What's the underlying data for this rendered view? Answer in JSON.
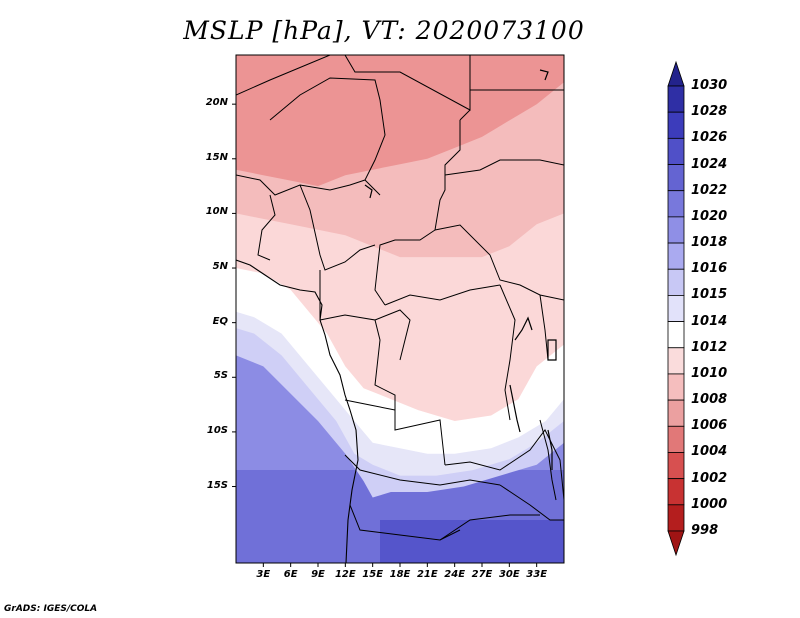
{
  "title": "MSLP [hPa], VT: 2020073100",
  "footer": "GrADS: IGES/COLA",
  "map": {
    "lon_range": [
      0,
      36
    ],
    "lat_range": [
      -22,
      24.5
    ],
    "lat_ticks": [
      {
        "value": 20,
        "label": "20N"
      },
      {
        "value": 15,
        "label": "15N"
      },
      {
        "value": 10,
        "label": "10N"
      },
      {
        "value": 5,
        "label": "5N"
      },
      {
        "value": 0,
        "label": "EQ"
      },
      {
        "value": -5,
        "label": "5S"
      },
      {
        "value": -10,
        "label": "10S"
      },
      {
        "value": -15,
        "label": "15S"
      }
    ],
    "lon_ticks": [
      {
        "value": 3,
        "label": "3E"
      },
      {
        "value": 6,
        "label": "6E"
      },
      {
        "value": 9,
        "label": "9E"
      },
      {
        "value": 12,
        "label": "12E"
      },
      {
        "value": 15,
        "label": "15E"
      },
      {
        "value": 18,
        "label": "18E"
      },
      {
        "value": 21,
        "label": "21E"
      },
      {
        "value": 24,
        "label": "24E"
      },
      {
        "value": 27,
        "label": "27E"
      },
      {
        "value": 30,
        "label": "30E"
      },
      {
        "value": 33,
        "label": "33E"
      }
    ]
  },
  "colorbar": {
    "labels": [
      "1030",
      "1028",
      "1026",
      "1024",
      "1022",
      "1020",
      "1018",
      "1016",
      "1015",
      "1014",
      "1012",
      "1010",
      "1008",
      "1006",
      "1004",
      "1002",
      "1000",
      "998"
    ],
    "colors": [
      "#23238c",
      "#2f2fa5",
      "#3c3cbb",
      "#5050c8",
      "#6464d2",
      "#7878dc",
      "#8f8fe6",
      "#aaaaf0",
      "#c8c8f5",
      "#e2e2fa",
      "#ffffff",
      "#fadcdc",
      "#f5bebe",
      "#eba0a0",
      "#e17878",
      "#d75050",
      "#c83232",
      "#b41e1e",
      "#a01414"
    ]
  },
  "contours": [
    {
      "value": 1008,
      "color": "#ec9494",
      "points": [
        [
          0,
          24.5
        ],
        [
          36,
          24.5
        ],
        [
          36,
          22
        ],
        [
          33,
          20
        ],
        [
          30,
          18.5
        ],
        [
          27,
          17
        ],
        [
          24,
          16
        ],
        [
          21,
          15
        ],
        [
          18,
          14.5
        ],
        [
          15,
          14
        ],
        [
          12,
          13.5
        ],
        [
          9,
          12.5
        ],
        [
          6,
          13
        ],
        [
          3,
          13.5
        ],
        [
          0,
          14
        ]
      ]
    },
    {
      "value": 1006,
      "color": "#e27c7c",
      "points": [
        [
          0,
          24.5
        ],
        [
          18,
          24.5
        ],
        [
          16,
          22
        ],
        [
          15,
          20
        ],
        [
          12,
          18.5
        ],
        [
          9,
          17.5
        ],
        [
          6,
          16.5
        ],
        [
          3,
          16
        ],
        [
          0,
          15.5
        ]
      ]
    },
    {
      "value": 1010,
      "color": "#f4bcbc",
      "points": [
        [
          0,
          24.5
        ],
        [
          36,
          24.5
        ],
        [
          36,
          10
        ],
        [
          33,
          9
        ],
        [
          30,
          7
        ],
        [
          27,
          6
        ],
        [
          24,
          6
        ],
        [
          21,
          6
        ],
        [
          18,
          6
        ],
        [
          15,
          7
        ],
        [
          12,
          8
        ],
        [
          9,
          8.5
        ],
        [
          6,
          9
        ],
        [
          3,
          9.5
        ],
        [
          0,
          10
        ]
      ]
    },
    {
      "value": 1012,
      "color": "#fbd8d8",
      "points": [
        [
          0,
          24.5
        ],
        [
          36,
          24.5
        ],
        [
          36,
          -2
        ],
        [
          33,
          -4
        ],
        [
          31,
          -7
        ],
        [
          28,
          -8.5
        ],
        [
          24,
          -9
        ],
        [
          20,
          -8
        ],
        [
          17,
          -7
        ],
        [
          14,
          -6
        ],
        [
          12,
          -4
        ],
        [
          10,
          -1
        ],
        [
          8,
          1
        ],
        [
          6,
          3
        ],
        [
          3,
          4.5
        ],
        [
          0,
          5
        ]
      ]
    },
    {
      "value": 1014,
      "color": "#ffffff",
      "points": [
        [
          0,
          24.5
        ],
        [
          36,
          24.5
        ],
        [
          36,
          -7
        ],
        [
          34,
          -9
        ],
        [
          31,
          -10.5
        ],
        [
          28,
          -11.5
        ],
        [
          24,
          -12
        ],
        [
          21,
          -12
        ],
        [
          18,
          -11.5
        ],
        [
          15,
          -11
        ],
        [
          13,
          -9
        ],
        [
          11,
          -7
        ],
        [
          8,
          -4
        ],
        [
          5,
          -1
        ],
        [
          2,
          0.5
        ],
        [
          0,
          1
        ]
      ]
    },
    {
      "value": 1015,
      "color": "#e6e6f8",
      "points": [
        [
          0,
          24.5
        ],
        [
          36,
          24.5
        ],
        [
          36,
          -9
        ],
        [
          33,
          -11
        ],
        [
          30,
          -12.5
        ],
        [
          26,
          -13.5
        ],
        [
          22,
          -14
        ],
        [
          18,
          -14
        ],
        [
          15,
          -13
        ],
        [
          13,
          -12
        ],
        [
          11,
          -9
        ],
        [
          8,
          -6
        ],
        [
          5,
          -3
        ],
        [
          2,
          -1
        ],
        [
          0,
          -0.5
        ]
      ]
    },
    {
      "value": 1016,
      "color": "#cfcff6",
      "points": [
        [
          0,
          24.5
        ],
        [
          36,
          24.5
        ],
        [
          36,
          -11
        ],
        [
          33,
          -13
        ],
        [
          29,
          -14
        ],
        [
          25,
          -15
        ],
        [
          21,
          -15.5
        ],
        [
          17,
          -15.5
        ],
        [
          15,
          -16
        ],
        [
          14,
          -14.5
        ],
        [
          12,
          -12
        ],
        [
          9,
          -9
        ],
        [
          6,
          -6.5
        ],
        [
          3,
          -4
        ],
        [
          0,
          -3
        ]
      ]
    }
  ]
}
